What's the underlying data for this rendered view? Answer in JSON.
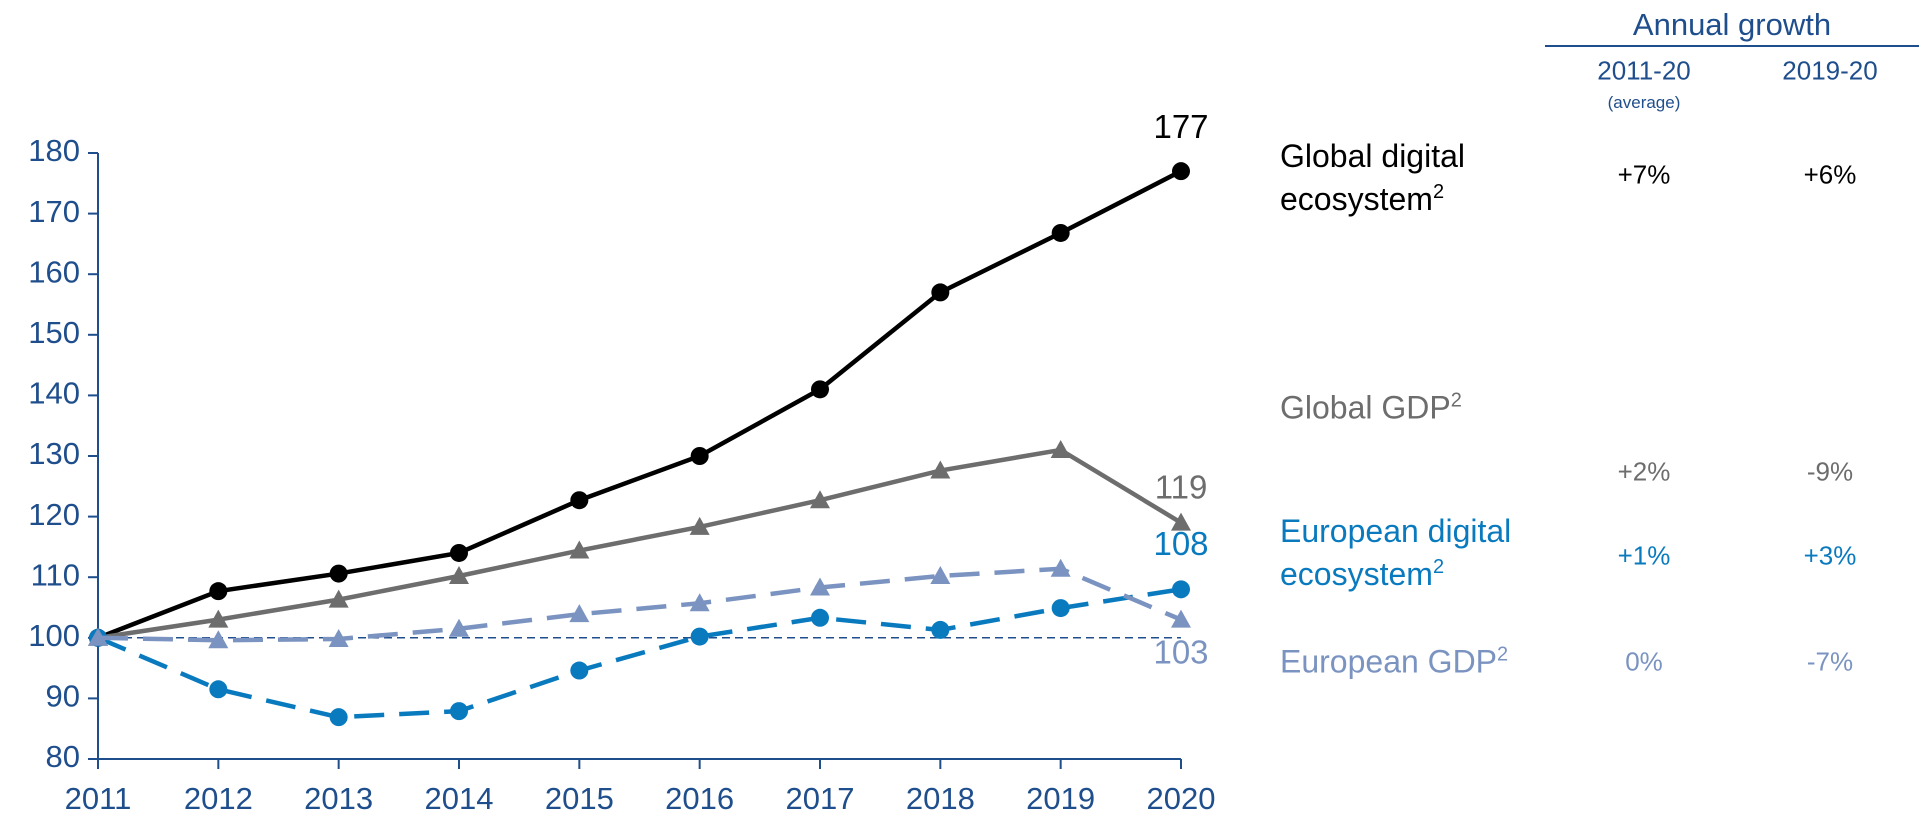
{
  "chart_data": {
    "type": "line",
    "x": [
      2011,
      2012,
      2013,
      2014,
      2015,
      2016,
      2017,
      2018,
      2019,
      2020
    ],
    "xlim": [
      2011,
      2020
    ],
    "xticks": [
      2011,
      2012,
      2013,
      2014,
      2015,
      2016,
      2017,
      2018,
      2019,
      2020
    ],
    "ylim": [
      80,
      180
    ],
    "yticks": [
      80,
      90,
      100,
      110,
      120,
      130,
      140,
      150,
      160,
      170,
      180
    ],
    "reference_line": 100,
    "table_title": "Annual growth",
    "table_columns": [
      {
        "label": "2011-20",
        "note": "(average)"
      },
      {
        "label": "2019-20"
      }
    ],
    "series": [
      {
        "name": "Global digital ecosystem",
        "note": "2",
        "color": "#000000",
        "marker": "circle",
        "dashed": false,
        "values": [
          100,
          107.7,
          110.6,
          114,
          122.7,
          130,
          141,
          157,
          166.8,
          177
        ],
        "growth": [
          "+7%",
          "+6%"
        ]
      },
      {
        "name": "Global GDP",
        "note": "2",
        "color": "#6d6d6d",
        "marker": "triangle",
        "dashed": false,
        "values": [
          100,
          103,
          106.3,
          110.2,
          114.4,
          118.3,
          122.7,
          127.6,
          131,
          119
        ],
        "growth": [
          "+2%",
          "-9%"
        ]
      },
      {
        "name": "European digital ecosystem",
        "note": "2",
        "color": "#0a7abf",
        "marker": "circle",
        "dashed": true,
        "values": [
          100,
          91.5,
          86.9,
          87.9,
          94.6,
          100.2,
          103.3,
          101.3,
          104.9,
          108
        ],
        "growth": [
          "+1%",
          "+3%"
        ]
      },
      {
        "name": "European GDP",
        "note": "2",
        "color": "#7a93c0",
        "marker": "triangle",
        "dashed": true,
        "values": [
          100,
          99.6,
          99.8,
          101.5,
          103.9,
          105.7,
          108.3,
          110.2,
          111.4,
          103
        ],
        "growth": [
          "0%",
          "-7%"
        ]
      }
    ]
  }
}
